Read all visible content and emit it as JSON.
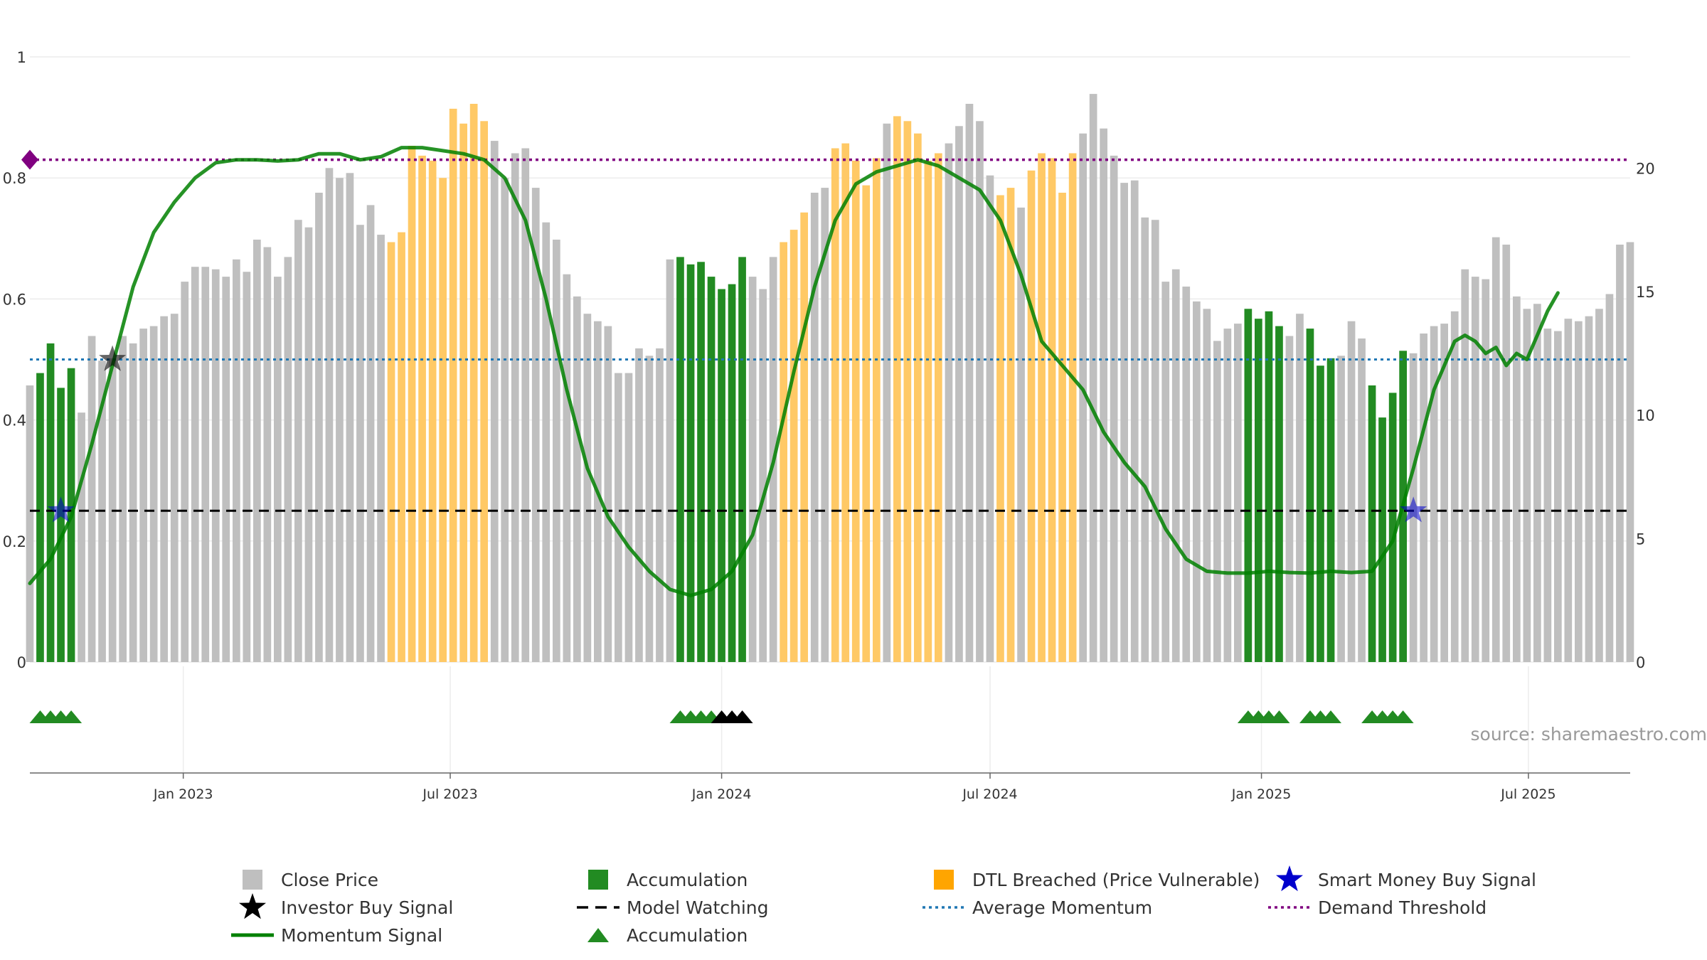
{
  "chart_data": {
    "type": "bar",
    "source": "source: sharemaestro.com",
    "x_range": [
      "2022-09-19",
      "2025-09-08"
    ],
    "x_ticks": [
      {
        "date": "2023-01-01",
        "label": "Jan 2023"
      },
      {
        "date": "2023-07-01",
        "label": "Jul 2023"
      },
      {
        "date": "2024-01-01",
        "label": "Jan 2024"
      },
      {
        "date": "2024-07-01",
        "label": "Jul 2024"
      },
      {
        "date": "2025-01-01",
        "label": "Jan 2025"
      },
      {
        "date": "2025-07-01",
        "label": "Jul 2025"
      }
    ],
    "y_left": {
      "range": [
        0,
        1
      ],
      "ticks": [
        0,
        0.2,
        0.4,
        0.6,
        0.8,
        1
      ],
      "tick_labels": [
        "0",
        "0.2",
        "0.4",
        "0.6",
        "0.8",
        "1"
      ]
    },
    "y_right": {
      "range": [
        0,
        24.5
      ],
      "ticks": [
        0,
        5,
        10,
        15,
        20
      ],
      "tick_labels": [
        "0",
        "5",
        "10",
        "15",
        "20"
      ]
    },
    "grid": "horizontal",
    "legend_position": "bottom",
    "colors": {
      "close_price": "#bfbfbf",
      "accumulation": "#228b22",
      "dtl_breached": "#ffc966",
      "momentum": "#008000",
      "model_watching": "#000000",
      "average_momentum": "#1f77b4",
      "demand_threshold": "#800080",
      "smart_money": "#0000cc",
      "investor_buy": "#000000"
    },
    "bars": {
      "weeks_start": "2022-09-19",
      "weekly_close": [
        11.2,
        11.7,
        12.9,
        11.1,
        11.9,
        10.1,
        13.2,
        12.2,
        12.3,
        13.2,
        12.9,
        13.5,
        13.6,
        14.0,
        14.1,
        15.4,
        16.0,
        16.0,
        15.9,
        15.6,
        16.3,
        15.8,
        17.1,
        16.8,
        15.6,
        16.4,
        17.9,
        17.6,
        19.0,
        20.0,
        19.6,
        19.8,
        17.7,
        18.5,
        17.3,
        17.0,
        17.4,
        20.9,
        20.5,
        20.3,
        19.6,
        22.4,
        21.8,
        22.6,
        21.9,
        21.1,
        19.6,
        20.6,
        20.8,
        19.2,
        17.8,
        17.1,
        15.7,
        14.8,
        14.1,
        13.8,
        13.6,
        11.7,
        11.7,
        12.7,
        12.4,
        12.7,
        16.3,
        16.4,
        16.1,
        16.2,
        15.6,
        15.1,
        15.3,
        16.4,
        15.6,
        15.1,
        16.4,
        17.0,
        17.5,
        18.2,
        19.0,
        19.2,
        20.8,
        21.0,
        20.3,
        19.3,
        20.4,
        21.8,
        22.1,
        21.9,
        21.4,
        20.3,
        20.6,
        21.0,
        21.7,
        22.6,
        21.9,
        19.7,
        18.9,
        19.2,
        18.4,
        19.9,
        20.6,
        20.4,
        19.0,
        20.6,
        21.4,
        23.0,
        21.6,
        20.5,
        19.4,
        19.5,
        18.0,
        17.9,
        15.4,
        15.9,
        15.2,
        14.6,
        14.3,
        13.0,
        13.5,
        13.7,
        14.3,
        13.9,
        14.2,
        13.6,
        13.2,
        14.1,
        13.5,
        12.0,
        12.3,
        12.4,
        13.8,
        13.1,
        11.2,
        9.9,
        10.9,
        12.6,
        12.5,
        13.3,
        13.6,
        13.7,
        14.2,
        15.9,
        15.6,
        15.5,
        17.2,
        16.9,
        14.8,
        14.3,
        14.5,
        13.5,
        13.4,
        13.9,
        13.8,
        14.0,
        14.3,
        14.9,
        16.9,
        17.0
      ],
      "accumulation_weeks": [
        [
          1,
          4
        ],
        [
          63,
          69
        ],
        [
          118,
          121
        ],
        [
          124,
          126
        ],
        [
          130,
          133
        ]
      ],
      "dtl_weeks": [
        [
          35,
          44
        ],
        [
          73,
          75
        ],
        [
          78,
          82
        ],
        [
          84,
          88
        ],
        [
          94,
          95
        ],
        [
          97,
          101
        ]
      ]
    },
    "momentum_signal": [
      [
        0,
        0.13
      ],
      [
        2,
        0.17
      ],
      [
        4,
        0.24
      ],
      [
        6,
        0.36
      ],
      [
        8,
        0.49
      ],
      [
        10,
        0.62
      ],
      [
        12,
        0.71
      ],
      [
        14,
        0.76
      ],
      [
        16,
        0.8
      ],
      [
        18,
        0.825
      ],
      [
        20,
        0.83
      ],
      [
        22,
        0.83
      ],
      [
        24,
        0.828
      ],
      [
        26,
        0.83
      ],
      [
        28,
        0.84
      ],
      [
        30,
        0.84
      ],
      [
        32,
        0.83
      ],
      [
        34,
        0.835
      ],
      [
        36,
        0.85
      ],
      [
        38,
        0.85
      ],
      [
        40,
        0.845
      ],
      [
        42,
        0.84
      ],
      [
        44,
        0.83
      ],
      [
        46,
        0.8
      ],
      [
        48,
        0.73
      ],
      [
        50,
        0.6
      ],
      [
        52,
        0.45
      ],
      [
        54,
        0.32
      ],
      [
        56,
        0.24
      ],
      [
        58,
        0.19
      ],
      [
        60,
        0.15
      ],
      [
        62,
        0.12
      ],
      [
        64,
        0.11
      ],
      [
        66,
        0.12
      ],
      [
        68,
        0.15
      ],
      [
        70,
        0.21
      ],
      [
        72,
        0.33
      ],
      [
        74,
        0.48
      ],
      [
        76,
        0.62
      ],
      [
        78,
        0.73
      ],
      [
        80,
        0.79
      ],
      [
        82,
        0.81
      ],
      [
        84,
        0.82
      ],
      [
        86,
        0.83
      ],
      [
        88,
        0.82
      ],
      [
        90,
        0.8
      ],
      [
        92,
        0.78
      ],
      [
        94,
        0.73
      ],
      [
        96,
        0.64
      ],
      [
        98,
        0.53
      ],
      [
        100,
        0.49
      ],
      [
        102,
        0.45
      ],
      [
        104,
        0.38
      ],
      [
        106,
        0.33
      ],
      [
        108,
        0.29
      ],
      [
        110,
        0.22
      ],
      [
        112,
        0.17
      ],
      [
        114,
        0.15
      ],
      [
        116,
        0.147
      ],
      [
        118,
        0.147
      ],
      [
        120,
        0.15
      ],
      [
        122,
        0.148
      ],
      [
        124,
        0.147
      ],
      [
        126,
        0.15
      ],
      [
        128,
        0.148
      ],
      [
        130,
        0.15
      ],
      [
        132,
        0.2
      ],
      [
        134,
        0.32
      ],
      [
        136,
        0.45
      ],
      [
        138,
        0.53
      ],
      [
        139,
        0.54
      ],
      [
        140,
        0.53
      ],
      [
        141,
        0.51
      ],
      [
        142,
        0.52
      ],
      [
        143,
        0.49
      ],
      [
        144,
        0.51
      ],
      [
        145,
        0.5
      ],
      [
        146,
        0.54
      ],
      [
        147,
        0.58
      ],
      [
        148,
        0.61
      ]
    ],
    "average_momentum": 0.5,
    "model_watching": 0.25,
    "demand_threshold": 0.83,
    "investor_buy_signals": [
      [
        8,
        0.5
      ]
    ],
    "smart_money_buy_signals": [
      [
        3,
        0.25
      ],
      [
        134,
        0.25
      ]
    ],
    "accumulation_markers": [
      {
        "color": "#228b22",
        "weeks": [
          1,
          2,
          3,
          4,
          63,
          64,
          65,
          66,
          118,
          119,
          120,
          121,
          124,
          125,
          126,
          130,
          131,
          132,
          133
        ]
      },
      {
        "color": "#000000",
        "weeks": [
          67,
          68,
          69
        ]
      }
    ],
    "legend": [
      {
        "label": "Close Price",
        "symbol": "square",
        "color": "#bfbfbf"
      },
      {
        "label": "Accumulation",
        "symbol": "square",
        "color": "#228b22"
      },
      {
        "label": "DTL Breached (Price Vulnerable)",
        "symbol": "square",
        "color": "#ffa500"
      },
      {
        "label": "Smart Money Buy Signal",
        "symbol": "star",
        "color": "#0000cc"
      },
      {
        "label": "Investor Buy Signal",
        "symbol": "star",
        "color": "#000000"
      },
      {
        "label": "Model Watching",
        "symbol": "dash",
        "color": "#000000"
      },
      {
        "label": "Average Momentum",
        "symbol": "dot",
        "color": "#1f77b4"
      },
      {
        "label": "Demand Threshold",
        "symbol": "dot",
        "color": "#800080"
      },
      {
        "label": "Momentum Signal",
        "symbol": "line",
        "color": "#008000"
      },
      {
        "label": "Accumulation",
        "symbol": "triangle",
        "color": "#228b22"
      }
    ]
  }
}
